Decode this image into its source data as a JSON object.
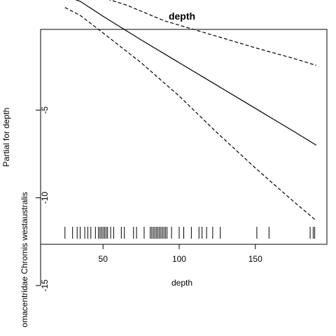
{
  "chart_data": {
    "type": "line",
    "title": "depth",
    "xlabel": "depth",
    "ylabel": "Partial for depth",
    "ylabel_secondary": "omacentridae Chromis westaustralis",
    "xlim": [
      9,
      197
    ],
    "ylim": [
      -12.65,
      -0.4
    ],
    "x_ticks": [
      50,
      100,
      150
    ],
    "y_ticks": [
      -5,
      -10,
      -15
    ],
    "x_tick_labels": [
      "50",
      "100",
      "150"
    ],
    "y_tick_labels": [
      "-5",
      "-10",
      "-15"
    ],
    "grid": false,
    "series": [
      {
        "role": "fit",
        "style": "solid",
        "points": [
          [
            25,
            1.5
          ],
          [
            35,
            1.2
          ],
          [
            50,
            0.35
          ],
          [
            75,
            -1.0
          ],
          [
            100,
            -2.3
          ],
          [
            125,
            -3.6
          ],
          [
            150,
            -4.9
          ],
          [
            175,
            -6.2
          ],
          [
            190,
            -7.0
          ]
        ]
      },
      {
        "role": "upper",
        "style": "dashed",
        "points": [
          [
            25,
            2.15
          ],
          [
            50,
            1.4
          ],
          [
            65,
            1.0
          ],
          [
            90,
            0.1
          ],
          [
            125,
            -0.8
          ],
          [
            150,
            -1.45
          ],
          [
            175,
            -2.05
          ],
          [
            190,
            -2.45
          ]
        ]
      },
      {
        "role": "lower",
        "style": "dashed",
        "points": [
          [
            25,
            0.85
          ],
          [
            35,
            0.4
          ],
          [
            50,
            -0.6
          ],
          [
            75,
            -2.3
          ],
          [
            100,
            -4.2
          ],
          [
            125,
            -6.3
          ],
          [
            150,
            -8.3
          ],
          [
            175,
            -10.2
          ],
          [
            190,
            -11.3
          ]
        ]
      }
    ],
    "rug": [
      25,
      30,
      33,
      35,
      38,
      40,
      42,
      45,
      47,
      48,
      49,
      50,
      51,
      52,
      53,
      55,
      57,
      62,
      64,
      70,
      72,
      77,
      81,
      82,
      83,
      84,
      85,
      86,
      87,
      88,
      89,
      90,
      91,
      92,
      95,
      100,
      103,
      108,
      113,
      115,
      118,
      122,
      127,
      151,
      159,
      186,
      188,
      189
    ]
  }
}
